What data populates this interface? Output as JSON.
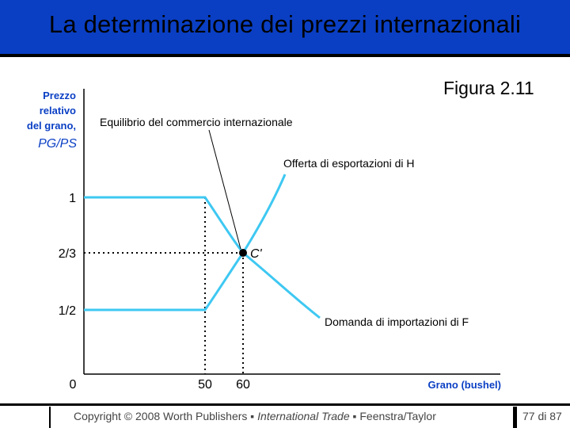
{
  "slide": {
    "title": "La determinazione dei prezzi internazionali",
    "figure_label": "Figura 2.11"
  },
  "diagram": {
    "y_axis_label": [
      "Prezzo",
      "relativo",
      "del grano,"
    ],
    "y_axis_symbol": "PG/PS",
    "x_axis_label": "Grano (bushel)",
    "y_ticks": [
      "1",
      "2/3",
      "1/2"
    ],
    "x_ticks": [
      "0",
      "50",
      "60"
    ],
    "equilibrium_label": "Equilibrio del commercio internazionale",
    "supply_label": "Offerta di esportazioni di H",
    "demand_label": "Domanda di importazioni di F",
    "point_label": "C'",
    "colors": {
      "curve": "#3ec8f2",
      "title_bar": "#0a3fc4",
      "axis_label": "#0a3fc4"
    }
  },
  "footer": {
    "copyright_prefix": "Copyright © 2008 Worth Publishers ▪ ",
    "book": "International Trade",
    "authors": " ▪ Feenstra/Taylor",
    "page": "77 di 87"
  }
}
